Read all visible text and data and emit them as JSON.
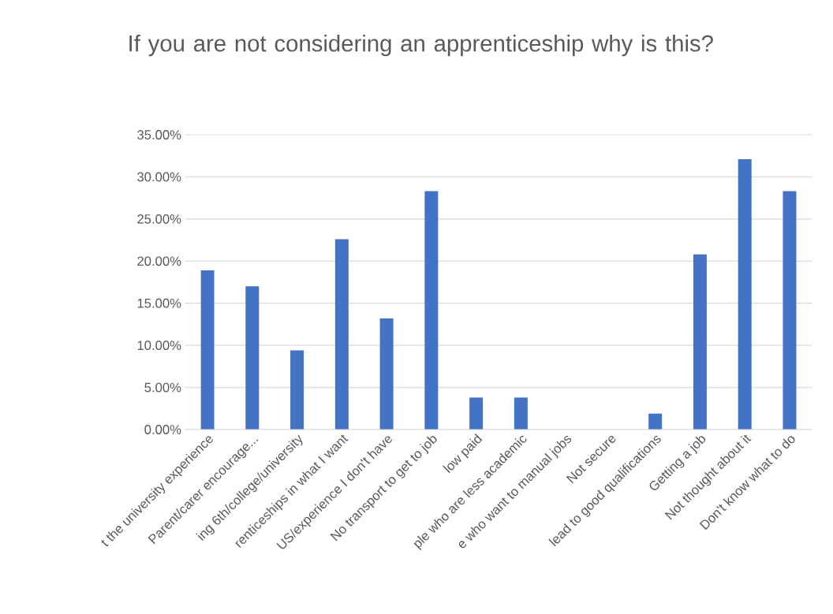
{
  "chart_data": {
    "type": "bar",
    "title": "If you are not considering an apprenticeship why is this?",
    "categories": [
      "t the university experience",
      "Parent/carer encourage...",
      "ing 6th/college/university",
      "renticeships in what I want",
      "US/experience I don't have",
      "No transport to get to job",
      "low paid",
      "ple who are less academic",
      "e who want to manual jobs",
      "Not secure",
      "lead to good qualifications",
      "Getting a job",
      "Not thought about it",
      "Don't know what to do"
    ],
    "values": [
      18.9,
      17.0,
      9.4,
      22.6,
      13.2,
      28.3,
      3.8,
      3.8,
      0,
      0,
      1.9,
      20.8,
      32.1,
      28.3
    ],
    "color": "#4472c4",
    "ylim": [
      0,
      35
    ],
    "yticks": [
      {
        "value": 0,
        "label": "0.00%"
      },
      {
        "value": 5,
        "label": "5.00%"
      },
      {
        "value": 10,
        "label": "10.00%"
      },
      {
        "value": 15,
        "label": "15.00%"
      },
      {
        "value": 20,
        "label": "20.00%"
      },
      {
        "value": 25,
        "label": "25.00%"
      },
      {
        "value": 30,
        "label": "30.00%"
      },
      {
        "value": 35,
        "label": "35.00%"
      }
    ],
    "grid": "y"
  }
}
